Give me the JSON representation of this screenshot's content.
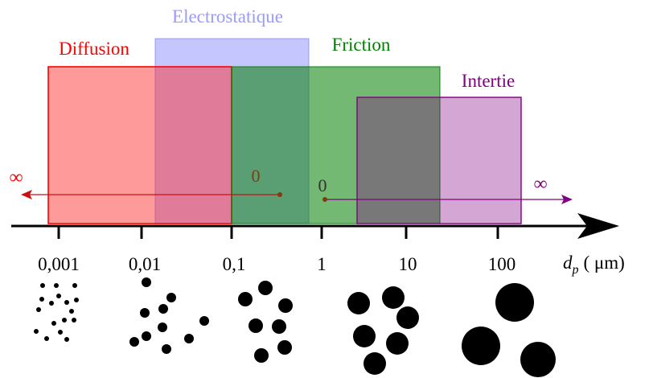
{
  "colors": {
    "diffusion": "#ff0000",
    "electrostatique": "#8080ff",
    "friction": "#008000",
    "intertie": "#800080",
    "axis": "#000000",
    "zero_dot": "#7a3e10"
  },
  "mechanisms": {
    "diffusion": "Diffusion",
    "electrostatique": "Electrostatique",
    "friction": "Friction",
    "intertie": "Intertie"
  },
  "arrows": {
    "left_infinity": "∞",
    "left_zero": "0",
    "right_zero": "0",
    "right_infinity": "∞"
  },
  "axis": {
    "ticks": [
      "0,001",
      "0,01",
      "0,1",
      "1",
      "10",
      "100"
    ],
    "unit_var": "d",
    "unit_sub": "p",
    "unit_text": "( μm)"
  }
}
